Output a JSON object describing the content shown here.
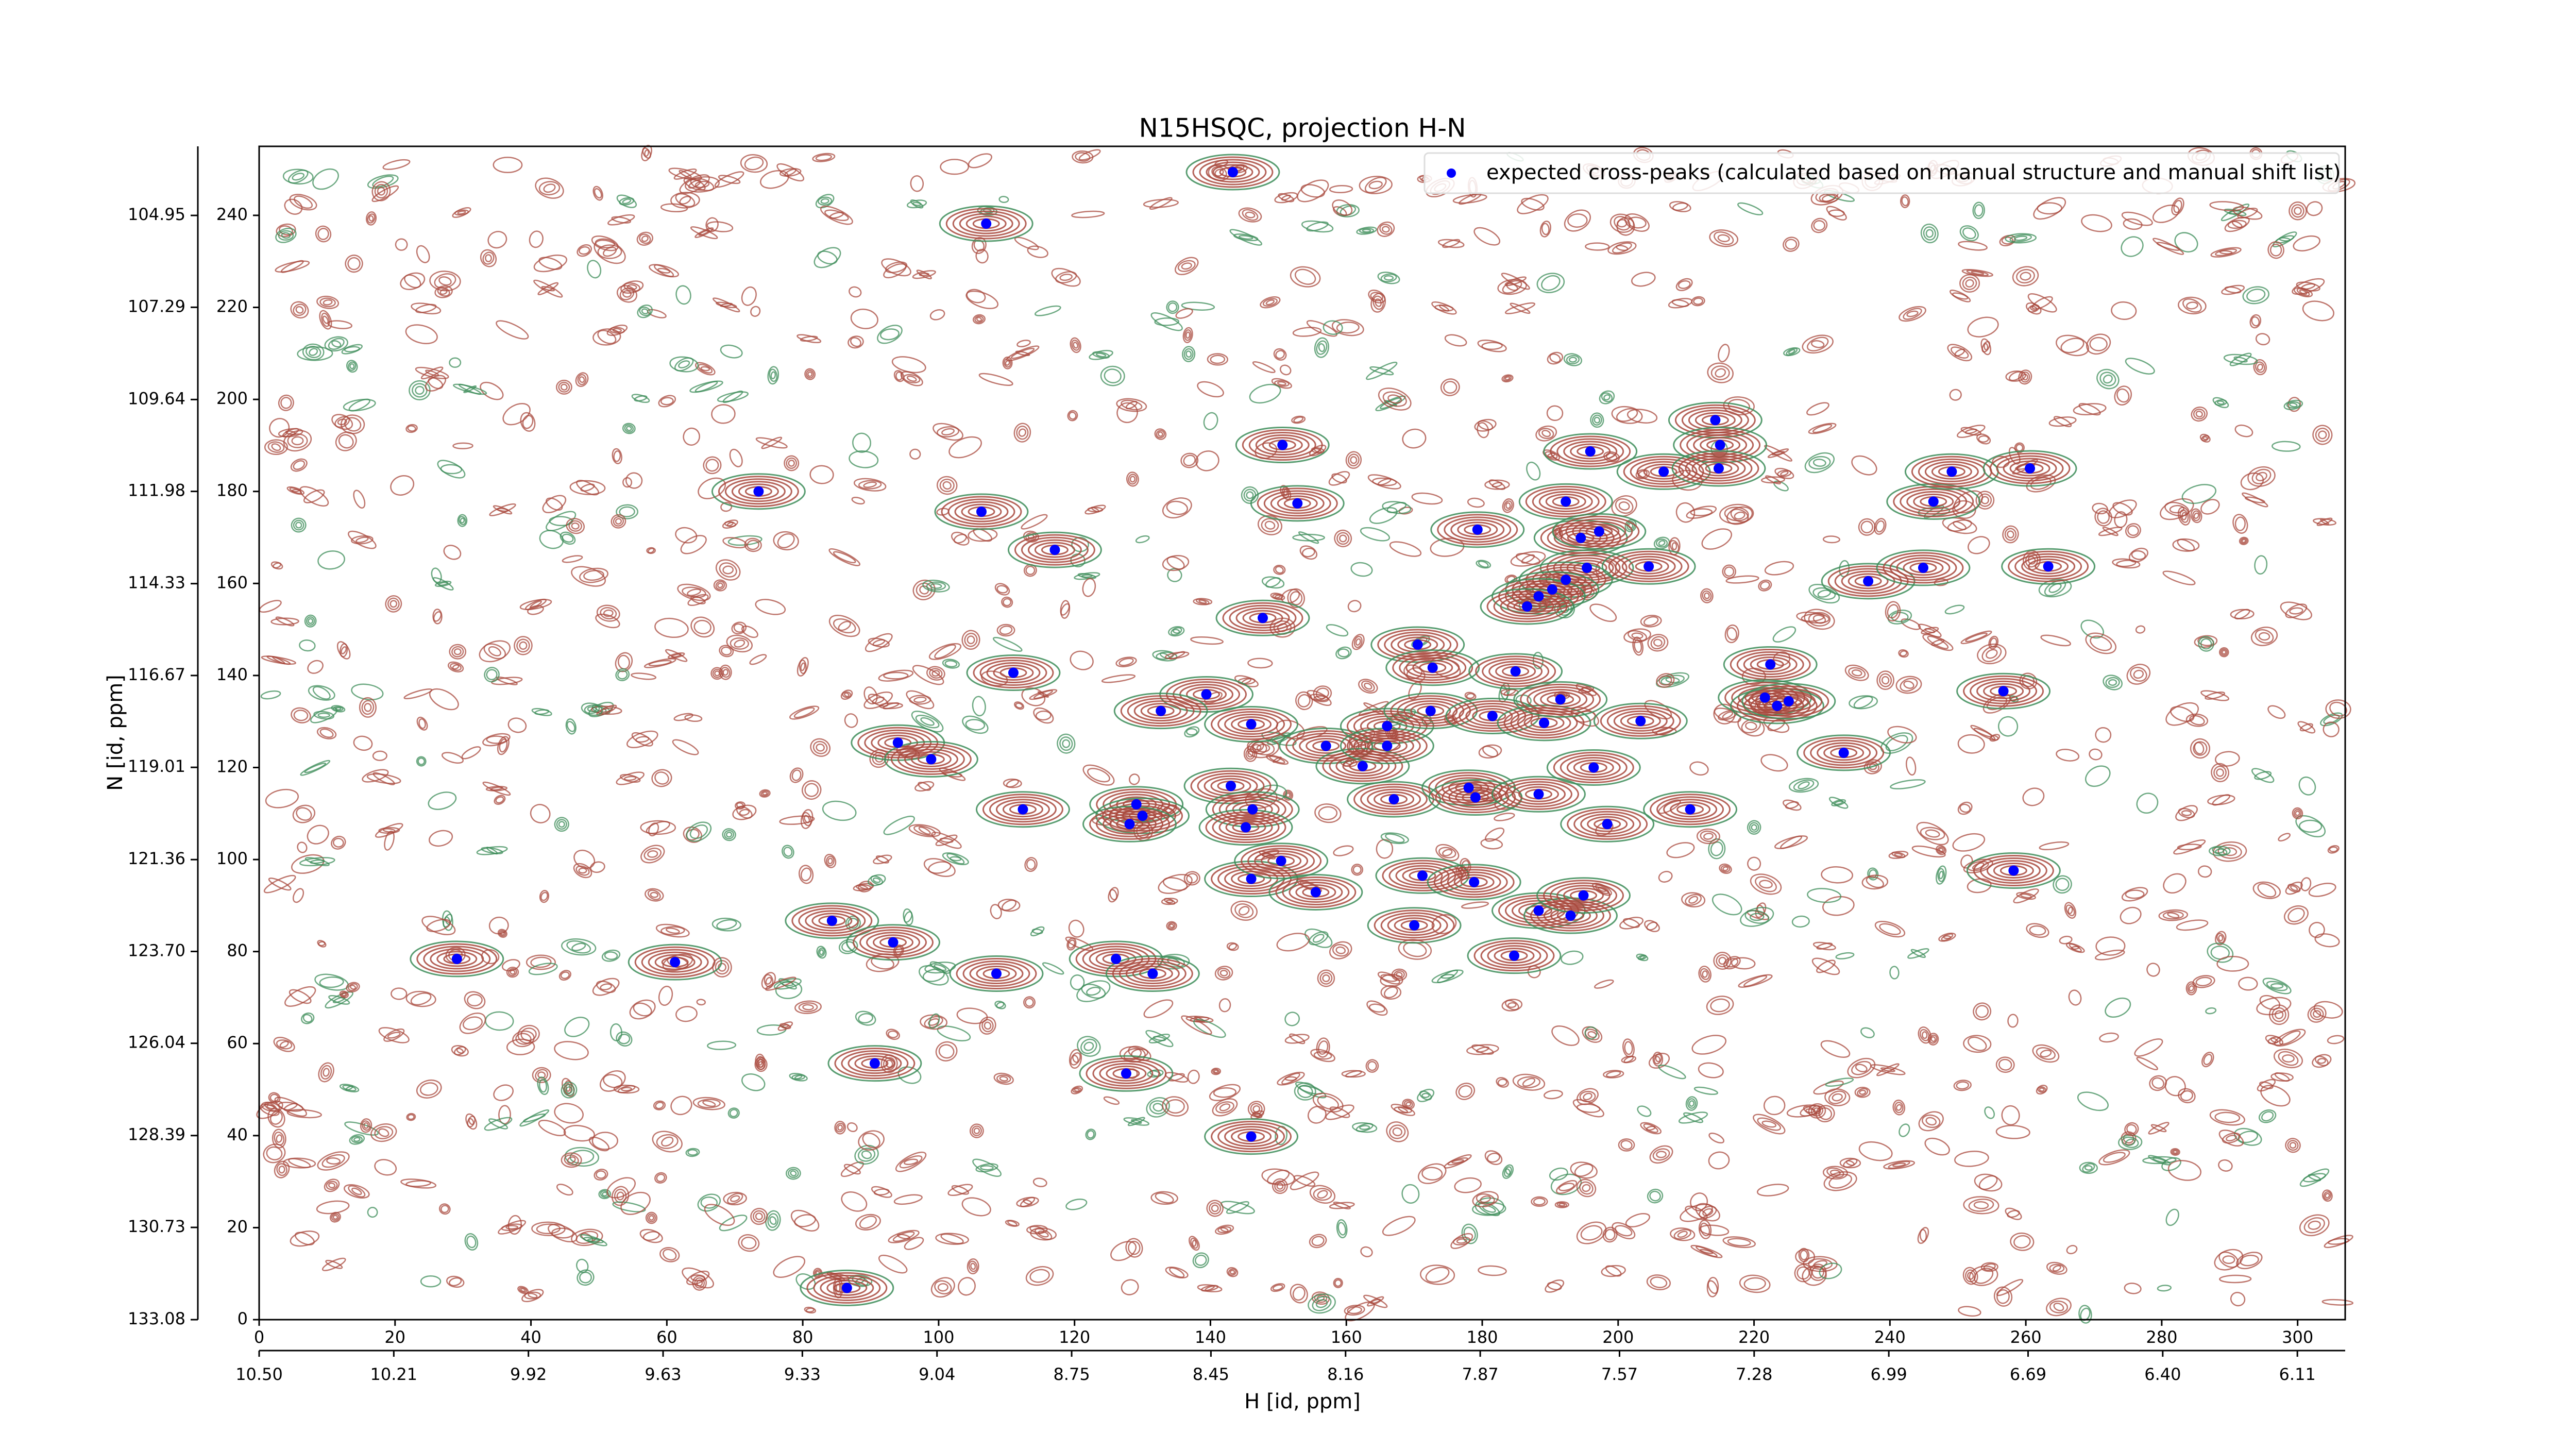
{
  "chart_data": {
    "type": "scatter",
    "title": "N15HSQC, projection H-N",
    "x_label": "H [id, ppm]",
    "y_label": "N [id, ppm]",
    "legend": "upper right",
    "series": [
      {
        "name": "expected cross-peaks (calculated based on manual structure and manual shift list)",
        "color": "#0000ff",
        "x": [
          143.3,
          107.0,
          73.5,
          106.3,
          117.1,
          150.6,
          152.8,
          147.7,
          111.0,
          94.0,
          98.9,
          112.4,
          139.4,
          132.7,
          146.0,
          143.0,
          146.2,
          145.2,
          129.1,
          130.0,
          128.1,
          146.0,
          150.4,
          155.5,
          157.0,
          162.4,
          166.0,
          166.0,
          170.5,
          172.7,
          172.4,
          167.0,
          171.2,
          170.0,
          179.3,
          178.0,
          179.0,
          178.8,
          181.5,
          184.9,
          189.1,
          188.3,
          191.5,
          188.3,
          193.0,
          194.9,
          184.7,
          196.4,
          198.4,
          203.3,
          210.6,
          195.9,
          192.3,
          194.5,
          197.2,
          195.4,
          192.3,
          190.3,
          188.3,
          186.6,
          204.5,
          206.7,
          214.3,
          215.0,
          214.8,
          222.4,
          221.6,
          223.4,
          225.1,
          233.2,
          236.8,
          244.9,
          246.4,
          249.1,
          260.6,
          263.3,
          256.7,
          258.2,
          29.1,
          61.2,
          84.3,
          93.3,
          108.5,
          126.1,
          131.5,
          90.6,
          127.6,
          146.0,
          86.5
        ],
        "values": [
          249.4,
          238.2,
          180.0,
          175.6,
          167.3,
          190.1,
          177.4,
          152.5,
          140.6,
          125.4,
          121.8,
          110.9,
          135.9,
          132.3,
          129.4,
          116.0,
          110.9,
          107.0,
          112.0,
          109.5,
          107.7,
          95.8,
          99.7,
          92.9,
          124.7,
          120.3,
          129.0,
          124.7,
          146.7,
          141.7,
          132.3,
          113.1,
          96.5,
          85.7,
          171.7,
          115.6,
          113.5,
          95.1,
          131.2,
          140.9,
          129.7,
          114.2,
          134.8,
          88.9,
          87.8,
          92.2,
          79.1,
          120.0,
          107.7,
          130.1,
          110.9,
          188.7,
          177.8,
          169.9,
          171.3,
          163.4,
          160.8,
          158.7,
          157.2,
          155.0,
          163.7,
          184.3,
          195.5,
          190.1,
          185.0,
          142.4,
          135.2,
          133.4,
          134.4,
          123.2,
          160.5,
          163.4,
          177.8,
          184.3,
          185.0,
          163.7,
          136.6,
          97.6,
          78.4,
          77.7,
          86.7,
          82.0,
          75.2,
          78.4,
          75.2,
          55.7,
          53.5,
          39.8,
          6.9
        ]
      }
    ],
    "contour_colors": [
      "#a8483c",
      "#3c8c58"
    ],
    "xlim": [
      0,
      307
    ],
    "xticks": [
      0,
      20,
      40,
      60,
      80,
      100,
      120,
      140,
      160,
      180,
      200,
      220,
      240,
      260,
      280,
      300
    ],
    "ylim": [
      0,
      255
    ],
    "yticks": [
      0,
      20,
      40,
      60,
      80,
      100,
      120,
      140,
      160,
      180,
      200,
      220,
      240
    ],
    "x2lim": [
      10.5,
      6.007
    ],
    "x2ticks": [
      {
        "value": 10.5,
        "label": "10.50"
      },
      10.21,
      9.92,
      9.63,
      9.33,
      9.04,
      8.75,
      8.45,
      8.16,
      7.87,
      7.57,
      7.28,
      6.99,
      6.69,
      {
        "value": 6.4,
        "label": "6.40"
      },
      6.11
    ],
    "y2lim": [
      133.08,
      103.19
    ],
    "y2ticks": [
      133.08,
      130.73,
      128.39,
      126.04,
      {
        "value": 123.7,
        "label": "123.70"
      },
      121.36,
      119.01,
      116.67,
      114.33,
      111.98,
      109.64,
      107.29,
      104.95
    ]
  }
}
